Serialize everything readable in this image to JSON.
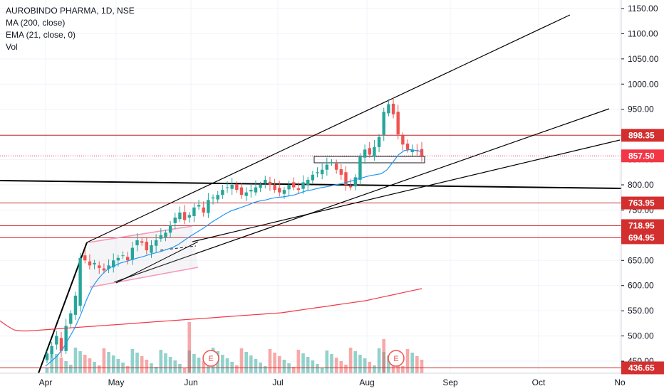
{
  "legend": {
    "symbol": "AUROBINDO PHARMA, 1D, NSE",
    "ma": "MA (200, close)",
    "ema": "EMA (21, close, 0)",
    "vol": "Vol"
  },
  "colors": {
    "up": "#26a69a",
    "down": "#ef5350",
    "ma200": "#f23645",
    "ema21": "#2196f3",
    "level_line": "#c62828",
    "trend_line": "#000000",
    "price_label_red": "#d32f2f",
    "current_price": "#f23645"
  },
  "chart_data": {
    "type": "candlestick",
    "title": "AUROBINDO PHARMA, 1D, NSE",
    "ylim": [
      430,
      1170
    ],
    "y_ticks": [
      "1150.00",
      "1100.00",
      "1050.00",
      "1000.00",
      "950.00",
      "900.00",
      "850.00",
      "800.00",
      "750.00",
      "700.00",
      "650.00",
      "600.00",
      "550.00",
      "500.00",
      "450.00"
    ],
    "x_ticks": [
      "Apr",
      "May",
      "Jun",
      "Jul",
      "Aug",
      "Sep",
      "Oct",
      "No"
    ],
    "price_levels": [
      {
        "label": "898.35",
        "value": 898.35
      },
      {
        "label": "763.95",
        "value": 763.95
      },
      {
        "label": "718.95",
        "value": 718.95
      },
      {
        "label": "694.95",
        "value": 694.95
      },
      {
        "label": "436.65",
        "value": 436.65
      }
    ],
    "current_price": {
      "label": "857.50",
      "value": 857.5
    },
    "earnings_markers": [
      "E",
      "E"
    ],
    "ohlc_close_path": [
      465,
      480,
      500,
      470,
      520,
      545,
      580,
      655,
      650,
      640,
      645,
      635,
      630,
      640,
      650,
      655,
      660,
      650,
      675,
      690,
      685,
      670,
      680,
      690,
      700,
      705,
      720,
      735,
      745,
      730,
      740,
      755,
      760,
      745,
      770,
      775,
      780,
      790,
      795,
      800,
      790,
      780,
      785,
      790,
      795,
      800,
      810,
      800,
      790,
      785,
      790,
      800,
      795,
      790,
      805,
      810,
      820,
      825,
      830,
      840,
      845,
      830,
      820,
      800,
      795,
      815,
      855,
      870,
      860,
      875,
      895,
      945,
      960,
      940,
      900,
      880,
      870,
      870,
      868,
      857.5
    ],
    "ma200_path": [
      530,
      520,
      512,
      510,
      510,
      511,
      512,
      513,
      514,
      515,
      516,
      517,
      518,
      519,
      520,
      521,
      522,
      523,
      524,
      525,
      526,
      527,
      528,
      529,
      530,
      531,
      532,
      533,
      534,
      535,
      536,
      537,
      538,
      539,
      540,
      541,
      542,
      543,
      544,
      545,
      546,
      548,
      550,
      552,
      554,
      556,
      558,
      560,
      562,
      564,
      566,
      568,
      570,
      573,
      576,
      579,
      582,
      585,
      588,
      591,
      594
    ],
    "ema21_path": [
      440,
      450,
      460,
      475,
      495,
      515,
      540,
      570,
      595,
      612,
      625,
      635,
      640,
      645,
      648,
      652,
      655,
      658,
      662,
      665,
      668,
      672,
      676,
      682,
      690,
      698,
      705,
      712,
      720,
      728,
      735,
      742,
      748,
      752,
      756,
      760,
      765,
      768,
      770,
      773,
      775,
      776,
      778,
      780,
      784,
      788,
      790,
      793,
      795,
      797,
      800,
      802,
      805,
      808,
      812,
      815,
      818,
      820,
      822,
      830,
      845,
      860,
      868,
      870,
      868,
      866
    ]
  }
}
